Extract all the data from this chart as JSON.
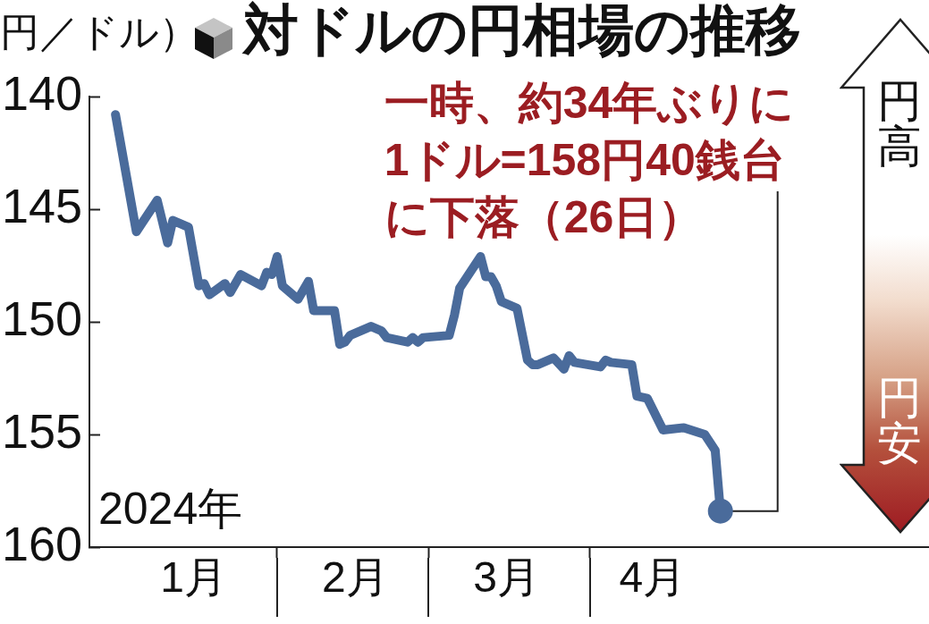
{
  "chart_data": {
    "type": "line",
    "title": "対ドルの円相場の推移",
    "ylabel": "円／ドル）",
    "annotations": [
      {
        "text": "一時、約34年ぶりに1ドル=158円40銭台に下落（26日）",
        "x": "2024-04-26",
        "y": 158.4
      },
      "2024年",
      "円高",
      "円安"
    ],
    "series": [
      {
        "type": "line",
        "color": "#4a6b9b",
        "x": [
          "2024-01-01",
          "2024-01-05",
          "2024-01-09",
          "2024-01-11",
          "2024-01-12",
          "2024-01-15",
          "2024-01-17",
          "2024-01-18",
          "2024-01-19",
          "2024-01-22",
          "2024-01-23",
          "2024-01-25",
          "2024-01-29",
          "2024-01-30",
          "2024-01-31",
          "2024-02-01",
          "2024-02-02",
          "2024-02-05",
          "2024-02-07",
          "2024-02-08",
          "2024-02-12",
          "2024-02-13",
          "2024-02-14",
          "2024-02-15",
          "2024-02-19",
          "2024-02-21",
          "2024-02-22",
          "2024-02-26",
          "2024-02-27",
          "2024-02-28",
          "2024-02-29",
          "2024-03-05",
          "2024-03-06",
          "2024-03-07",
          "2024-03-11",
          "2024-03-12",
          "2024-03-13",
          "2024-03-14",
          "2024-03-15",
          "2024-03-18",
          "2024-03-20",
          "2024-03-21",
          "2024-03-22",
          "2024-03-25",
          "2024-03-27",
          "2024-03-28",
          "2024-03-29",
          "2024-04-03",
          "2024-04-04",
          "2024-04-05",
          "2024-04-09",
          "2024-04-10",
          "2024-04-12",
          "2024-04-15",
          "2024-04-19",
          "2024-04-23",
          "2024-04-25",
          "2024-04-26"
        ],
        "values": [
          140.8,
          146.0,
          144.6,
          146.5,
          145.5,
          145.8,
          148.4,
          148.3,
          148.8,
          148.3,
          148.7,
          147.9,
          148.4,
          147.8,
          147.9,
          147.1,
          148.4,
          149.0,
          148.2,
          149.5,
          149.5,
          151.0,
          150.9,
          150.6,
          150.2,
          150.4,
          150.7,
          150.9,
          150.7,
          150.9,
          150.7,
          150.6,
          149.7,
          148.5,
          147.1,
          148.0,
          148.0,
          148.4,
          149.1,
          149.4,
          151.7,
          151.9,
          151.9,
          151.6,
          152.1,
          151.5,
          151.8,
          152.0,
          151.7,
          151.8,
          151.9,
          153.3,
          153.4,
          154.8,
          154.7,
          155.0,
          155.7,
          158.4
        ]
      },
      {
        "type": "scatter",
        "color": "#4a6b9b",
        "x": [
          "2024-04-26"
        ],
        "values": [
          158.4
        ],
        "marker": "circle"
      }
    ],
    "xlim": [
      "2023-12-27",
      "2024-06-05"
    ],
    "xticks": [
      {
        "value": "2024-01-16",
        "label": "1月"
      },
      {
        "value": "2024-02-01",
        "label": null
      },
      {
        "value": "2024-02-16",
        "label": "2月"
      },
      {
        "value": "2024-03-01",
        "label": null
      },
      {
        "value": "2024-03-16",
        "label": "3月"
      },
      {
        "value": "2024-04-01",
        "label": null
      },
      {
        "value": "2024-04-13",
        "label": "4月"
      }
    ],
    "ylim": [
      160,
      140
    ],
    "yticks": [
      140,
      145,
      150,
      155,
      160
    ],
    "grid": false,
    "legend": false
  }
}
